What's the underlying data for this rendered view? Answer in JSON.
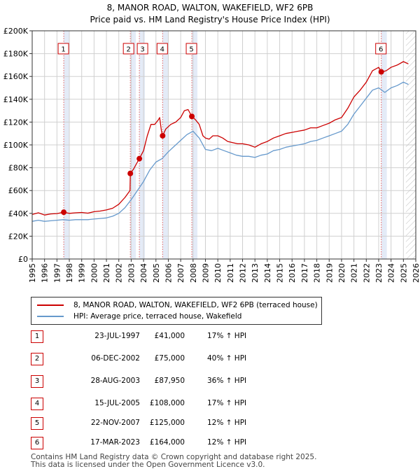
{
  "title": "8, MANOR ROAD, WALTON, WAKEFIELD, WF2 6PB",
  "subtitle": "Price paid vs. HM Land Registry's House Price Index (HPI)",
  "colors": {
    "property": "#cc0000",
    "hpi": "#6699cc",
    "marker_band": "#dde6f5",
    "hatch": "#bbbbbb",
    "grid": "#d0d0d0"
  },
  "chart_data": {
    "type": "line",
    "title": "8, MANOR ROAD, WALTON, WAKEFIELD, WF2 6PB",
    "subtitle": "Price paid vs. HM Land Registry's House Price Index (HPI)",
    "xlabel": "",
    "ylabel": "",
    "xlim": [
      1995,
      2026
    ],
    "ylim": [
      0,
      200000
    ],
    "y_ticks": [
      {
        "value": 0,
        "label": "£0"
      },
      {
        "value": 20000,
        "label": "£20K"
      },
      {
        "value": 40000,
        "label": "£40K"
      },
      {
        "value": 60000,
        "label": "£60K"
      },
      {
        "value": 80000,
        "label": "£80K"
      },
      {
        "value": 100000,
        "label": "£100K"
      },
      {
        "value": 120000,
        "label": "£120K"
      },
      {
        "value": 140000,
        "label": "£140K"
      },
      {
        "value": 160000,
        "label": "£160K"
      },
      {
        "value": 180000,
        "label": "£180K"
      },
      {
        "value": 200000,
        "label": "£200K"
      }
    ],
    "x_ticks": [
      "1995",
      "1996",
      "1997",
      "1998",
      "1999",
      "2000",
      "2001",
      "2002",
      "2003",
      "2004",
      "2005",
      "2006",
      "2007",
      "2008",
      "2009",
      "2010",
      "2011",
      "2012",
      "2013",
      "2014",
      "2015",
      "2016",
      "2017",
      "2018",
      "2019",
      "2020",
      "2021",
      "2022",
      "2023",
      "2024",
      "2025",
      "2026"
    ],
    "grid": true,
    "future_hatch_from": 2025.2,
    "series": [
      {
        "name": "8, MANOR ROAD, WALTON, WAKEFIELD, WF2 6PB (terraced house)",
        "color": "#cc0000",
        "points": [
          [
            1995.0,
            39000
          ],
          [
            1995.5,
            40500
          ],
          [
            1996.0,
            38500
          ],
          [
            1996.5,
            39500
          ],
          [
            1997.0,
            39800
          ],
          [
            1997.55,
            41000
          ],
          [
            1998.0,
            40000
          ],
          [
            1998.5,
            40500
          ],
          [
            1999.0,
            40800
          ],
          [
            1999.5,
            40200
          ],
          [
            2000.0,
            41500
          ],
          [
            2000.5,
            42000
          ],
          [
            2001.0,
            43000
          ],
          [
            2001.5,
            44500
          ],
          [
            2002.0,
            48000
          ],
          [
            2002.5,
            54000
          ],
          [
            2002.9,
            60000
          ],
          [
            2002.93,
            75000
          ],
          [
            2003.2,
            79000
          ],
          [
            2003.5,
            85000
          ],
          [
            2003.66,
            87950
          ],
          [
            2004.0,
            95000
          ],
          [
            2004.3,
            108000
          ],
          [
            2004.6,
            118000
          ],
          [
            2004.9,
            118000
          ],
          [
            2005.2,
            122000
          ],
          [
            2005.3,
            124000
          ],
          [
            2005.45,
            112000
          ],
          [
            2005.54,
            108000
          ],
          [
            2005.8,
            114000
          ],
          [
            2006.2,
            118000
          ],
          [
            2006.6,
            120000
          ],
          [
            2007.0,
            124000
          ],
          [
            2007.3,
            130000
          ],
          [
            2007.6,
            131000
          ],
          [
            2007.9,
            125000
          ],
          [
            2008.2,
            122000
          ],
          [
            2008.5,
            118000
          ],
          [
            2008.8,
            108000
          ],
          [
            2009.0,
            106000
          ],
          [
            2009.3,
            105000
          ],
          [
            2009.6,
            108000
          ],
          [
            2010.0,
            108000
          ],
          [
            2010.4,
            106000
          ],
          [
            2010.8,
            103000
          ],
          [
            2011.2,
            102000
          ],
          [
            2011.6,
            101000
          ],
          [
            2012.0,
            101000
          ],
          [
            2012.5,
            100000
          ],
          [
            2013.0,
            98000
          ],
          [
            2013.5,
            101000
          ],
          [
            2014.0,
            103000
          ],
          [
            2014.5,
            106000
          ],
          [
            2015.0,
            108000
          ],
          [
            2015.5,
            110000
          ],
          [
            2016.0,
            111000
          ],
          [
            2016.5,
            112000
          ],
          [
            2017.0,
            113000
          ],
          [
            2017.5,
            115000
          ],
          [
            2018.0,
            115000
          ],
          [
            2018.5,
            117000
          ],
          [
            2019.0,
            119000
          ],
          [
            2019.5,
            122000
          ],
          [
            2020.0,
            124000
          ],
          [
            2020.5,
            132000
          ],
          [
            2021.0,
            142000
          ],
          [
            2021.5,
            148000
          ],
          [
            2022.0,
            155000
          ],
          [
            2022.5,
            165000
          ],
          [
            2023.0,
            168000
          ],
          [
            2023.21,
            164000
          ],
          [
            2023.6,
            165000
          ],
          [
            2024.0,
            168000
          ],
          [
            2024.5,
            170000
          ],
          [
            2025.0,
            173000
          ],
          [
            2025.4,
            171000
          ]
        ]
      },
      {
        "name": "HPI: Average price, terraced house, Wakefield",
        "color": "#6699cc",
        "points": [
          [
            1995.0,
            33000
          ],
          [
            1995.5,
            34000
          ],
          [
            1996.0,
            33000
          ],
          [
            1996.5,
            33500
          ],
          [
            1997.0,
            34000
          ],
          [
            1997.5,
            34500
          ],
          [
            1998.0,
            34000
          ],
          [
            1998.5,
            34500
          ],
          [
            1999.0,
            34500
          ],
          [
            1999.5,
            34500
          ],
          [
            2000.0,
            35000
          ],
          [
            2000.5,
            35500
          ],
          [
            2001.0,
            36000
          ],
          [
            2001.5,
            37500
          ],
          [
            2002.0,
            40000
          ],
          [
            2002.5,
            45000
          ],
          [
            2003.0,
            52000
          ],
          [
            2003.5,
            60000
          ],
          [
            2004.0,
            68000
          ],
          [
            2004.5,
            78000
          ],
          [
            2005.0,
            85000
          ],
          [
            2005.5,
            88000
          ],
          [
            2006.0,
            94000
          ],
          [
            2006.5,
            99000
          ],
          [
            2007.0,
            104000
          ],
          [
            2007.5,
            109000
          ],
          [
            2008.0,
            112000
          ],
          [
            2008.5,
            106000
          ],
          [
            2009.0,
            96000
          ],
          [
            2009.5,
            95000
          ],
          [
            2010.0,
            97000
          ],
          [
            2010.5,
            95000
          ],
          [
            2011.0,
            93000
          ],
          [
            2011.5,
            91000
          ],
          [
            2012.0,
            90000
          ],
          [
            2012.5,
            90000
          ],
          [
            2013.0,
            89000
          ],
          [
            2013.5,
            91000
          ],
          [
            2014.0,
            92000
          ],
          [
            2014.5,
            95000
          ],
          [
            2015.0,
            96000
          ],
          [
            2015.5,
            98000
          ],
          [
            2016.0,
            99000
          ],
          [
            2016.5,
            100000
          ],
          [
            2017.0,
            101000
          ],
          [
            2017.5,
            103000
          ],
          [
            2018.0,
            104000
          ],
          [
            2018.5,
            106000
          ],
          [
            2019.0,
            108000
          ],
          [
            2019.5,
            110000
          ],
          [
            2020.0,
            112000
          ],
          [
            2020.5,
            118000
          ],
          [
            2021.0,
            127000
          ],
          [
            2021.5,
            134000
          ],
          [
            2022.0,
            141000
          ],
          [
            2022.5,
            148000
          ],
          [
            2023.0,
            150000
          ],
          [
            2023.5,
            146000
          ],
          [
            2024.0,
            150000
          ],
          [
            2024.5,
            152000
          ],
          [
            2025.0,
            155000
          ],
          [
            2025.4,
            153000
          ]
        ]
      }
    ],
    "sales": [
      {
        "n": "1",
        "x": 1997.55,
        "price": 41000
      },
      {
        "n": "2",
        "x": 2002.93,
        "price": 75000
      },
      {
        "n": "3",
        "x": 2003.66,
        "price": 87950
      },
      {
        "n": "4",
        "x": 2005.54,
        "price": 108000
      },
      {
        "n": "5",
        "x": 2007.9,
        "price": 125000
      },
      {
        "n": "6",
        "x": 2023.21,
        "price": 164000
      }
    ]
  },
  "legend": {
    "property": "8, MANOR ROAD, WALTON, WAKEFIELD, WF2 6PB (terraced house)",
    "hpi": "HPI: Average price, terraced house, Wakefield"
  },
  "sales_table": [
    {
      "num": "1",
      "date": "23-JUL-1997",
      "price": "£41,000",
      "hpi": "17% ↑ HPI"
    },
    {
      "num": "2",
      "date": "06-DEC-2002",
      "price": "£75,000",
      "hpi": "40% ↑ HPI"
    },
    {
      "num": "3",
      "date": "28-AUG-2003",
      "price": "£87,950",
      "hpi": "36% ↑ HPI"
    },
    {
      "num": "4",
      "date": "15-JUL-2005",
      "price": "£108,000",
      "hpi": "17% ↑ HPI"
    },
    {
      "num": "5",
      "date": "22-NOV-2007",
      "price": "£125,000",
      "hpi": "12% ↑ HPI"
    },
    {
      "num": "6",
      "date": "17-MAR-2023",
      "price": "£164,000",
      "hpi": "12% ↑ HPI"
    }
  ],
  "footer": {
    "line1": "Contains HM Land Registry data © Crown copyright and database right 2025.",
    "line2": "This data is licensed under the Open Government Licence v3.0."
  }
}
